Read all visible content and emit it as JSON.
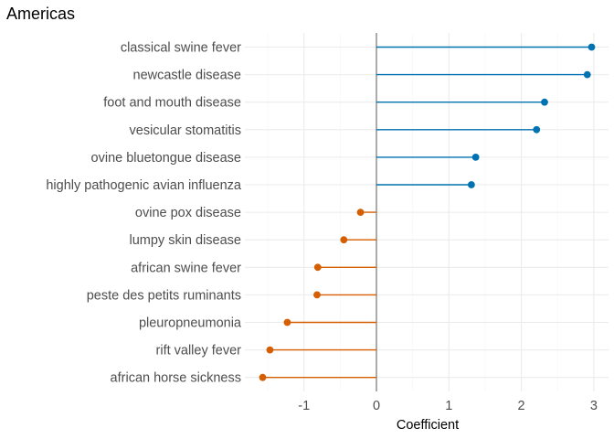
{
  "chart_data": {
    "type": "lollipop",
    "title": "Americas",
    "xlabel": "Coefficient",
    "ylabel": "",
    "xlim": [
      -1.9,
      3.2
    ],
    "xticks": [
      -1,
      0,
      1,
      2,
      3
    ],
    "grid": true,
    "legend": "none",
    "categories": [
      "classical swine fever",
      "newcastle disease",
      "foot and mouth disease",
      "vesicular stomatitis",
      "ovine bluetongue disease",
      "highly pathogenic avian influenza",
      "ovine pox disease",
      "lumpy skin disease",
      "african swine fever",
      "peste des petits ruminants",
      "pleuropneumonia",
      "rift valley fever",
      "african horse sickness"
    ],
    "values": [
      2.97,
      2.91,
      2.32,
      2.21,
      1.37,
      1.31,
      -0.22,
      -0.45,
      -0.81,
      -0.82,
      -1.23,
      -1.47,
      -1.57
    ],
    "colors": {
      "positive": "#0072B2",
      "negative": "#D55E00"
    }
  }
}
